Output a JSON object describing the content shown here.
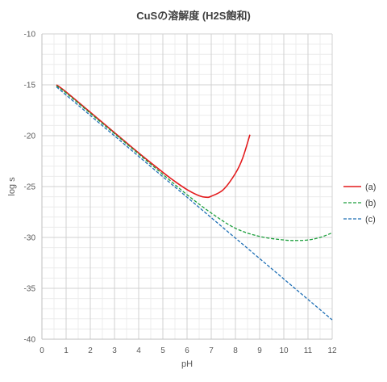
{
  "chart_data": {
    "type": "line",
    "title": "CuSの溶解度 (H2S飽和)",
    "xlabel": "pH",
    "ylabel": "log s",
    "xlim": [
      0,
      12
    ],
    "ylim": [
      -40,
      -10
    ],
    "x_ticks": [
      0,
      1,
      2,
      3,
      4,
      5,
      6,
      7,
      8,
      9,
      10,
      11,
      12
    ],
    "y_ticks": [
      -40,
      -35,
      -30,
      -25,
      -20,
      -15,
      -10
    ],
    "grid": "major and minor",
    "legend_position": "right",
    "series": [
      {
        "name": "(a)",
        "color": "#e31a1c",
        "line_style": "solid",
        "points": [
          [
            0.6,
            -15.0
          ],
          [
            1.0,
            -15.7
          ],
          [
            2.0,
            -17.7
          ],
          [
            3.0,
            -19.7
          ],
          [
            4.0,
            -21.7
          ],
          [
            5.0,
            -23.6
          ],
          [
            5.5,
            -24.5
          ],
          [
            6.0,
            -25.3
          ],
          [
            6.5,
            -25.9
          ],
          [
            6.8,
            -26.05
          ],
          [
            7.0,
            -25.95
          ],
          [
            7.5,
            -25.3
          ],
          [
            8.0,
            -23.7
          ],
          [
            8.3,
            -22.2
          ],
          [
            8.6,
            -19.9
          ]
        ]
      },
      {
        "name": "(b)",
        "color": "#1a9e3a",
        "line_style": "dashed",
        "points": [
          [
            0.6,
            -15.1
          ],
          [
            1.0,
            -15.8
          ],
          [
            2.0,
            -17.8
          ],
          [
            3.0,
            -19.8
          ],
          [
            4.0,
            -21.8
          ],
          [
            5.0,
            -23.8
          ],
          [
            6.0,
            -25.8
          ],
          [
            7.0,
            -27.6
          ],
          [
            8.0,
            -29.1
          ],
          [
            9.0,
            -29.9
          ],
          [
            10.0,
            -30.25
          ],
          [
            10.5,
            -30.3
          ],
          [
            11.0,
            -30.25
          ],
          [
            11.5,
            -30.0
          ],
          [
            12.0,
            -29.55
          ]
        ]
      },
      {
        "name": "(c)",
        "color": "#1f6fb5",
        "line_style": "dashed",
        "points": [
          [
            0.6,
            -15.2
          ],
          [
            12.0,
            -38.1
          ]
        ]
      }
    ]
  }
}
